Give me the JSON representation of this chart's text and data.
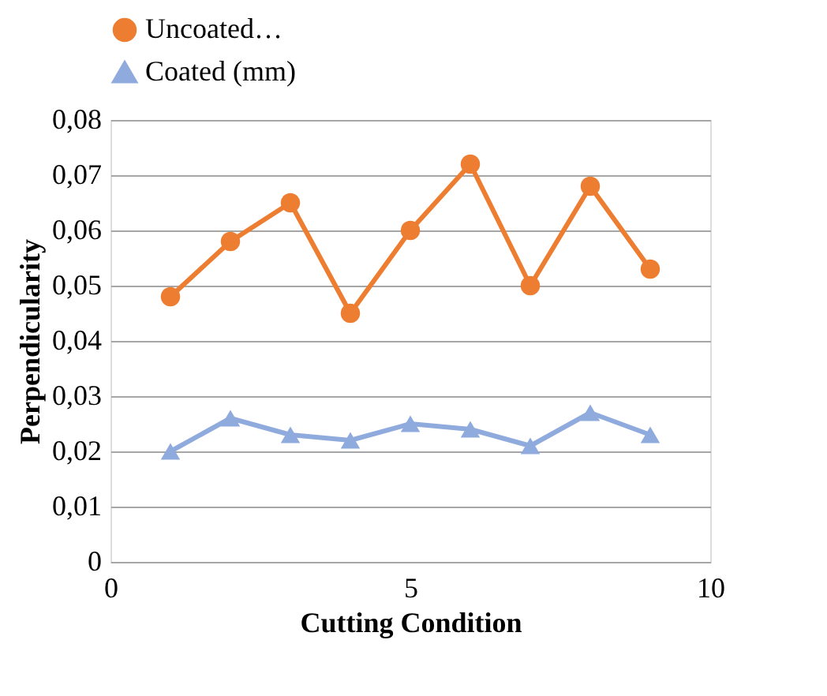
{
  "chart_data": {
    "type": "line",
    "xlabel": "Cutting Condition",
    "ylabel": "Perpendicularity",
    "x": [
      1,
      2,
      3,
      4,
      5,
      6,
      7,
      8,
      9
    ],
    "series": [
      {
        "name": "Uncoated…",
        "color": "#ed7d31",
        "marker": "circle",
        "values": [
          0.048,
          0.058,
          0.065,
          0.045,
          0.06,
          0.072,
          0.05,
          0.068,
          0.053
        ]
      },
      {
        "name": "Coated (mm)",
        "color": "#8faadc",
        "marker": "triangle",
        "values": [
          0.02,
          0.026,
          0.023,
          0.022,
          0.025,
          0.024,
          0.021,
          0.027,
          0.023
        ]
      }
    ],
    "xlim": [
      0,
      10
    ],
    "xticks": [
      0,
      5,
      10
    ],
    "ylim": [
      0,
      0.08
    ],
    "yticks": [
      {
        "value": 0,
        "label": "0"
      },
      {
        "value": 0.01,
        "label": "0,01"
      },
      {
        "value": 0.02,
        "label": "0,02"
      },
      {
        "value": 0.03,
        "label": "0,03"
      },
      {
        "value": 0.04,
        "label": "0,04"
      },
      {
        "value": 0.05,
        "label": "0,05"
      },
      {
        "value": 0.06,
        "label": "0,06"
      },
      {
        "value": 0.07,
        "label": "0,07"
      },
      {
        "value": 0.08,
        "label": "0,08"
      }
    ],
    "grid": "y",
    "legend": "top",
    "line_style": "solid"
  }
}
